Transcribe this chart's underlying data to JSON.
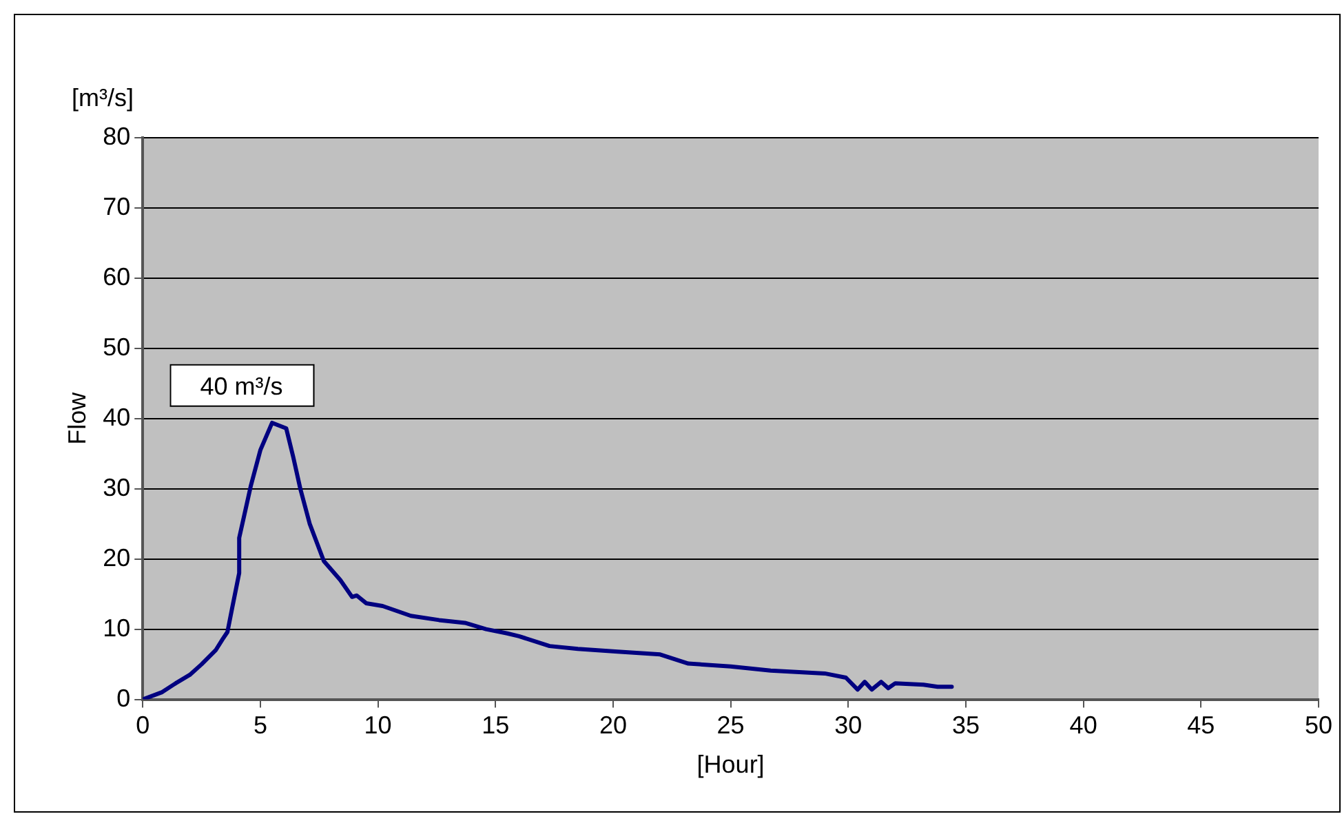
{
  "chart_data": {
    "type": "line",
    "xlabel": "[Hour]",
    "ylabel": "Flow",
    "annotations": [
      "[m³/s]",
      "40 m³/s"
    ],
    "xlim": [
      0,
      50
    ],
    "xticks": [
      0,
      5,
      10,
      15,
      20,
      25,
      30,
      35,
      40,
      45,
      50
    ],
    "ylim": [
      0,
      80
    ],
    "yticks": [
      0,
      10,
      20,
      30,
      40,
      50,
      60,
      70,
      80
    ],
    "grid": "y",
    "legend": false,
    "marker": "none",
    "line_style": "solid",
    "series": [
      {
        "color": "#000080",
        "x": [
          0,
          0.8,
          1.4,
          2,
          2.5,
          3.1,
          3.4,
          3.6,
          3.8,
          4.1,
          4.1,
          4.3,
          4.6,
          5,
          5.5,
          6.1,
          6.4,
          6.7,
          7.1,
          7.7,
          8.4,
          8.9,
          9.1,
          9.5,
          10.2,
          11.4,
          12.6,
          13.7,
          14.6,
          15.5,
          16,
          17.3,
          18.5,
          20.2,
          22,
          23.2,
          25,
          26.7,
          29,
          29.9,
          30.4,
          30.7,
          31,
          31.4,
          31.7,
          32,
          33.2,
          33.8,
          34.4
        ],
        "values": [
          0,
          1,
          2.3,
          3.5,
          5,
          7,
          8.6,
          9.6,
          13,
          18,
          23,
          26,
          30.5,
          35.5,
          39.4,
          38.6,
          34.5,
          30,
          25,
          19.7,
          17,
          14.6,
          14.8,
          13.7,
          13.3,
          11.9,
          11.3,
          10.9,
          10,
          9.4,
          9,
          7.6,
          7.2,
          6.8,
          6.4,
          5.1,
          4.7,
          4.1,
          3.7,
          3.1,
          1.4,
          2.5,
          1.4,
          2.5,
          1.6,
          2.3,
          2.1,
          1.8,
          1.8
        ]
      }
    ]
  }
}
